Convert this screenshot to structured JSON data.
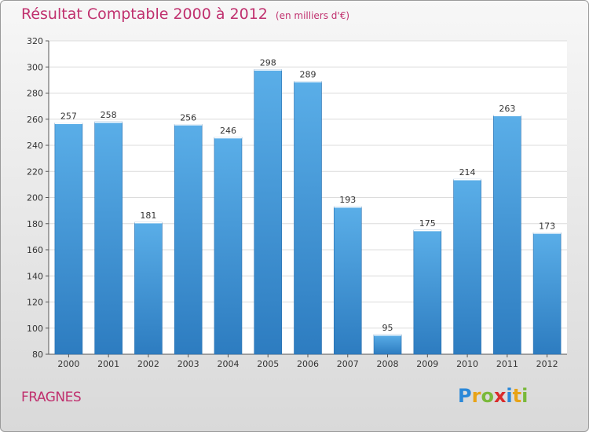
{
  "chart_data": {
    "type": "bar",
    "title": "Résultat Comptable 2000 à 2012",
    "subtitle": "(en milliers d'€)",
    "categories": [
      "2000",
      "2001",
      "2002",
      "2003",
      "2004",
      "2005",
      "2006",
      "2007",
      "2008",
      "2009",
      "2010",
      "2011",
      "2012"
    ],
    "values": [
      257,
      258,
      181,
      256,
      246,
      298,
      289,
      193,
      95,
      175,
      214,
      263,
      173
    ],
    "ylim": [
      80,
      320
    ],
    "yticks": [
      80,
      100,
      120,
      140,
      160,
      180,
      200,
      220,
      240,
      260,
      280,
      300,
      320
    ],
    "xlabel": "",
    "ylabel": "",
    "grid": true,
    "bar_color": "#3c8fd4"
  },
  "footer": {
    "town": "FRAGNES",
    "logo": "Proxiti"
  }
}
